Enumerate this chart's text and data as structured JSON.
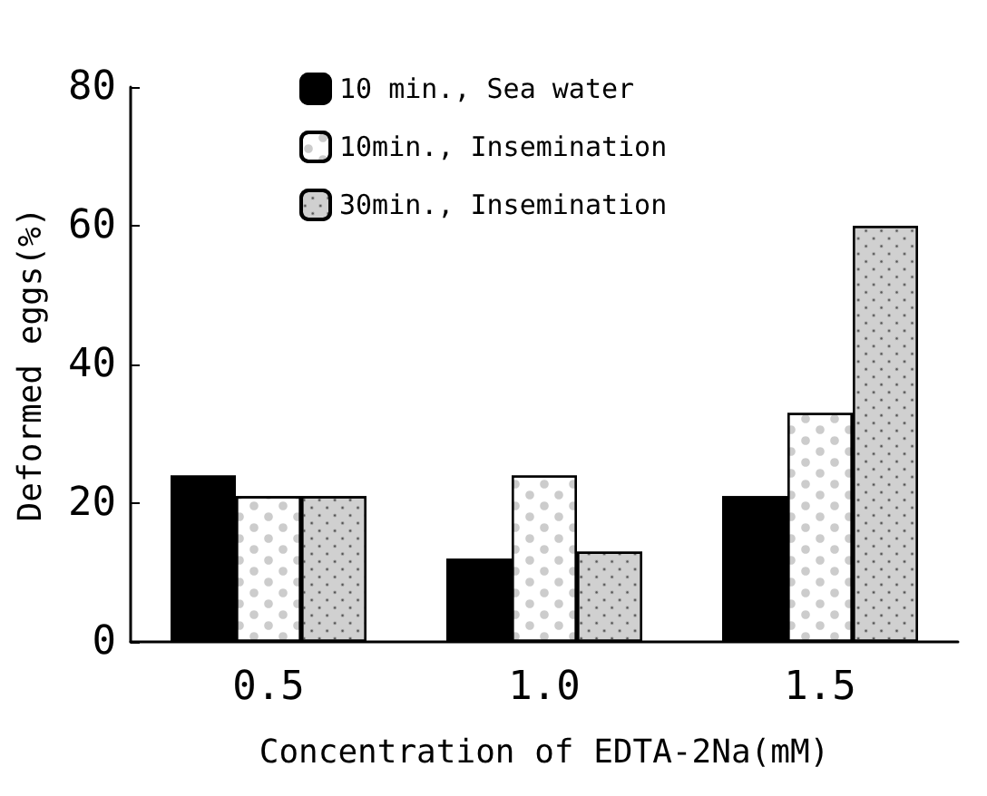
{
  "chart_data": {
    "type": "bar",
    "xlabel": "Concentration of EDTA-2Na(mM)",
    "ylabel": "Deformed eggs(%)",
    "categories": [
      "0.5",
      "1.0",
      "1.5"
    ],
    "series": [
      {
        "name": "10 min., Sea water",
        "color": "#000000",
        "values": [
          24,
          12,
          21
        ]
      },
      {
        "name": "10min., Insemination",
        "color": "#ffffff",
        "values": [
          21,
          24,
          33
        ]
      },
      {
        "name": "30min., Insemination",
        "color": "#d0d0d0",
        "values": [
          21,
          13,
          60
        ]
      }
    ],
    "ylim": [
      0,
      80
    ],
    "yticks": [
      0,
      20,
      40,
      60,
      80
    ],
    "grid": false,
    "legend": "top left"
  }
}
